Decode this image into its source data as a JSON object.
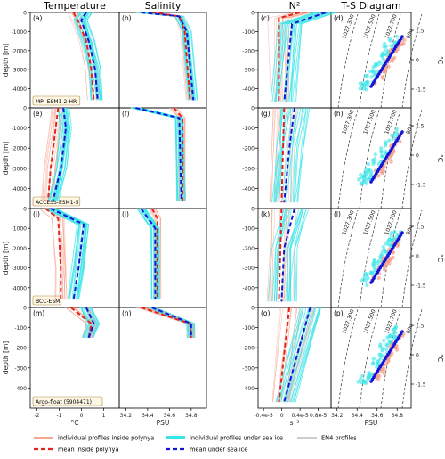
{
  "column_titles": [
    "Temperature",
    "Salinity",
    "N²",
    "T-S Diagram"
  ],
  "row_labels": [
    "MPI-ESM1-2-HR",
    "ACCESS-ESM1-5",
    "BCC-ESM",
    "Argo-float (5904471)"
  ],
  "panel_letters": [
    "(a)",
    "(b)",
    "(c)",
    "(d)",
    "(e)",
    "(f)",
    "(g)",
    "(h)",
    "(i)",
    "(j)",
    "(k)",
    "(l)",
    "(m)",
    "(n)",
    "(o)",
    "(p)"
  ],
  "y_axis_label": "depth [m]",
  "ts_right_label": "°C",
  "x_axis_units": {
    "temperature": "°C",
    "salinity": "PSU",
    "n2": "s⁻²",
    "ts": "PSU"
  },
  "legend": [
    {
      "label": "individual profiles inside polynya",
      "color": "#f08a6c",
      "style": "thin"
    },
    {
      "label": "mean inside polynya",
      "color": "#e8221a",
      "style": "dashed"
    },
    {
      "label": "individual profiles under sea ice",
      "color": "#39e4e8",
      "style": "thick"
    },
    {
      "label": "mean under sea ice",
      "color": "#1515d8",
      "style": "dashed"
    },
    {
      "label": "EN4 profiles",
      "color": "#bdbdbd",
      "style": "solid"
    }
  ],
  "colors": {
    "polynya_individual": "#f5a08a",
    "polynya_mean": "#e8221a",
    "ice_individual": "#39e4e8",
    "ice_mean": "#1515d8",
    "en4": "#bdbdbd"
  },
  "chart_data": [
    {
      "type": "line",
      "panel": "temperature",
      "x_ticks": [
        "-2",
        "-1",
        "0",
        "1"
      ],
      "x_range": [
        -2,
        1.5
      ],
      "y_ticks_deep": [
        "0",
        "-1000",
        "-2000",
        "-3000",
        "-4000"
      ],
      "y_ticks_shallow": [
        "0",
        "-100",
        "-200",
        "-300",
        "-400"
      ],
      "rows": [
        {
          "polynya_mean": [
            [
              -0.3,
              0
            ],
            [
              -0.1,
              -500
            ],
            [
              0.2,
              -1500
            ],
            [
              0.4,
              -3000
            ],
            [
              0.5,
              -4600
            ]
          ],
          "ice_mean": [
            [
              0.2,
              0
            ],
            [
              0.0,
              -400
            ],
            [
              0.3,
              -1500
            ],
            [
              0.55,
              -3000
            ],
            [
              0.65,
              -4600
            ]
          ]
        },
        {
          "polynya_mean": [
            [
              -0.9,
              0
            ],
            [
              -1.0,
              -1000
            ],
            [
              -1.2,
              -3000
            ],
            [
              -1.3,
              -4600
            ]
          ],
          "ice_mean": [
            [
              -0.7,
              0
            ],
            [
              -0.6,
              -1000
            ],
            [
              -0.8,
              -3000
            ],
            [
              -1.1,
              -4600
            ]
          ]
        },
        {
          "polynya_mean": [
            [
              -1.4,
              0
            ],
            [
              -0.9,
              -500
            ],
            [
              -0.8,
              -3000
            ],
            [
              -0.8,
              -4600
            ]
          ],
          "ice_mean": [
            [
              -1.2,
              0
            ],
            [
              0.1,
              -800
            ],
            [
              -0.1,
              -3000
            ],
            [
              -0.3,
              -4600
            ]
          ]
        },
        {
          "polynya_mean": [
            [
              -0.4,
              0
            ],
            [
              0.4,
              -80
            ],
            [
              0.3,
              -150
            ]
          ],
          "ice_mean": [
            [
              0.2,
              0
            ],
            [
              0.5,
              -80
            ],
            [
              0.3,
              -150
            ]
          ]
        }
      ]
    },
    {
      "type": "line",
      "panel": "salinity",
      "x_ticks": [
        "34.2",
        "34.4",
        "34.6",
        "34.8"
      ],
      "x_range": [
        34.0,
        34.8
      ],
      "rows": [
        {
          "polynya_mean": [
            [
              34.3,
              0
            ],
            [
              34.55,
              -200
            ],
            [
              34.6,
              -1000
            ],
            [
              34.65,
              -4600
            ]
          ],
          "ice_mean": [
            [
              34.2,
              0
            ],
            [
              34.55,
              -200
            ],
            [
              34.62,
              -1000
            ],
            [
              34.68,
              -4600
            ]
          ]
        },
        {
          "polynya_mean": [
            [
              34.5,
              0
            ],
            [
              34.58,
              -500
            ],
            [
              34.58,
              -4600
            ]
          ],
          "ice_mean": [
            [
              34.15,
              0
            ],
            [
              34.55,
              -500
            ],
            [
              34.57,
              -4600
            ]
          ]
        },
        {
          "polynya_mean": [
            [
              34.3,
              0
            ],
            [
              34.35,
              -500
            ],
            [
              34.35,
              -4600
            ]
          ],
          "ice_mean": [
            [
              34.2,
              0
            ],
            [
              34.33,
              -1000
            ],
            [
              34.33,
              -4600
            ]
          ]
        },
        {
          "polynya_mean": [
            [
              34.2,
              0
            ],
            [
              34.65,
              -80
            ],
            [
              34.66,
              -150
            ]
          ],
          "ice_mean": [
            [
              34.3,
              0
            ],
            [
              34.66,
              -80
            ],
            [
              34.66,
              -150
            ]
          ]
        }
      ]
    },
    {
      "type": "line",
      "panel": "n2",
      "x_ticks": [
        "-0.4e-5",
        "0",
        "0.4e-5",
        "0.8e-5"
      ],
      "x_range": [
        -4e-06,
        1e-05
      ],
      "rows": [
        {
          "polynya_mean": [
            [
              4e-06,
              0
            ],
            [
              0.0,
              -30
            ],
            [
              0.0,
              -470
            ]
          ],
          "ice_mean": [
            [
              9e-06,
              0
            ],
            [
              2.5e-06,
              -60
            ],
            [
              1e-06,
              -470
            ]
          ]
        },
        {
          "polynya_mean": [
            [
              1e-06,
              0
            ],
            [
              5e-07,
              -470
            ]
          ],
          "ice_mean": [
            [
              3e-06,
              0
            ],
            [
              2e-06,
              -200
            ],
            [
              1e-06,
              -470
            ]
          ]
        },
        {
          "polynya_mean": [
            [
              5e-07,
              0
            ],
            [
              0.0,
              -470
            ]
          ],
          "ice_mean": [
            [
              3e-06,
              0
            ],
            [
              1e-06,
              -200
            ],
            [
              5e-07,
              -470
            ]
          ]
        },
        {
          "polynya_mean": [
            [
              2e-06,
              0
            ],
            [
              0.0,
              -470
            ]
          ],
          "ice_mean": [
            [
              6e-06,
              0
            ],
            [
              1e-06,
              -470
            ]
          ]
        }
      ]
    },
    {
      "type": "scatter",
      "panel": "ts_diagram",
      "x_ticks": [
        "34.2",
        "34.4",
        "34.6",
        "34.8"
      ],
      "y_ticks_right": [
        "1.5",
        "0",
        "-1.5"
      ],
      "isopycnal_labels": [
        "1027.300",
        "1027.500",
        "1027.700",
        "800"
      ]
    }
  ]
}
